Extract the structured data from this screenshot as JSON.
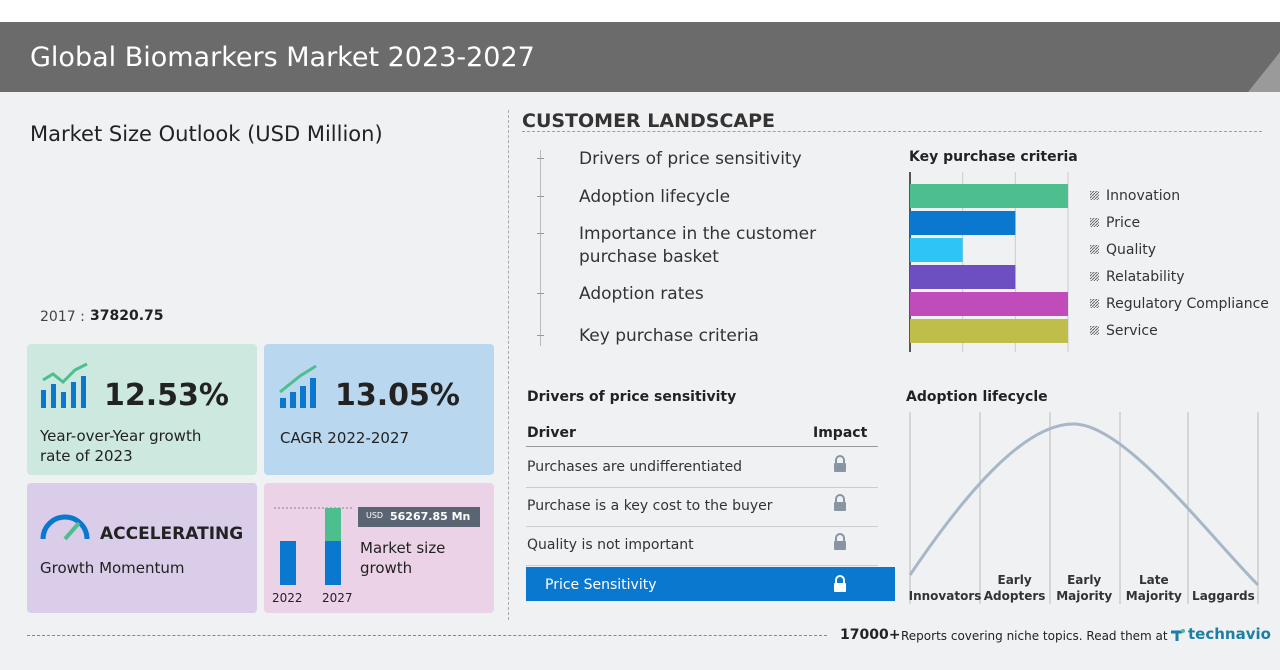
{
  "header": {
    "title": "Global Biomarkers Market 2023-2027"
  },
  "market_size": {
    "title": "Market Size Outlook (USD Million)",
    "base_year": "2017 :",
    "base_value": 37820.75
  },
  "yoy": {
    "value": "12.53%",
    "label": "Year-over-Year growth rate of 2023"
  },
  "cagr": {
    "value": "13.05%",
    "label": "CAGR 2022-2027"
  },
  "momentum": {
    "value": "ACCELERATING",
    "label": "Growth Momentum"
  },
  "growth": {
    "badge_unit": "USD",
    "badge_value": "56267.85 Mn",
    "label": "Market size growth",
    "years": [
      "2022",
      "2027"
    ]
  },
  "customer_landscape": {
    "title": "CUSTOMER LANDSCAPE",
    "items": [
      "Drivers of price sensitivity",
      "Adoption lifecycle",
      "Importance in the customer purchase basket",
      "Adoption rates",
      "Key purchase criteria"
    ]
  },
  "key_purchase_criteria": {
    "title": "Key purchase criteria",
    "xlim": [
      0,
      3
    ],
    "xticks": [
      0,
      1,
      2,
      3
    ],
    "items": [
      {
        "label": "Innovation",
        "value": 3,
        "color": "#4dbf8e"
      },
      {
        "label": "Price",
        "value": 2,
        "color": "#0b78d0"
      },
      {
        "label": "Quality",
        "value": 1,
        "color": "#2ec5f5"
      },
      {
        "label": "Relatability",
        "value": 2,
        "color": "#6d4fc1"
      },
      {
        "label": "Regulatory Compliance",
        "value": 3,
        "color": "#c04cbc"
      },
      {
        "label": "Service",
        "value": 3,
        "color": "#bfbe4a"
      }
    ]
  },
  "drivers": {
    "title": "Drivers of price sensitivity",
    "headers": [
      "Driver",
      "Impact"
    ],
    "rows": [
      "Purchases are undifferentiated",
      "Purchase is a key cost to the buyer",
      "Quality is not important"
    ],
    "highlight": "Price Sensitivity"
  },
  "adoption": {
    "title": "Adoption lifecycle",
    "stages": [
      "Innovators",
      "Early Adopters",
      "Early Majority",
      "Late Majority",
      "Laggards"
    ]
  },
  "footer": {
    "count": "17000+",
    "text": "Reports covering niche topics. Read them at",
    "brand": "technavio"
  }
}
